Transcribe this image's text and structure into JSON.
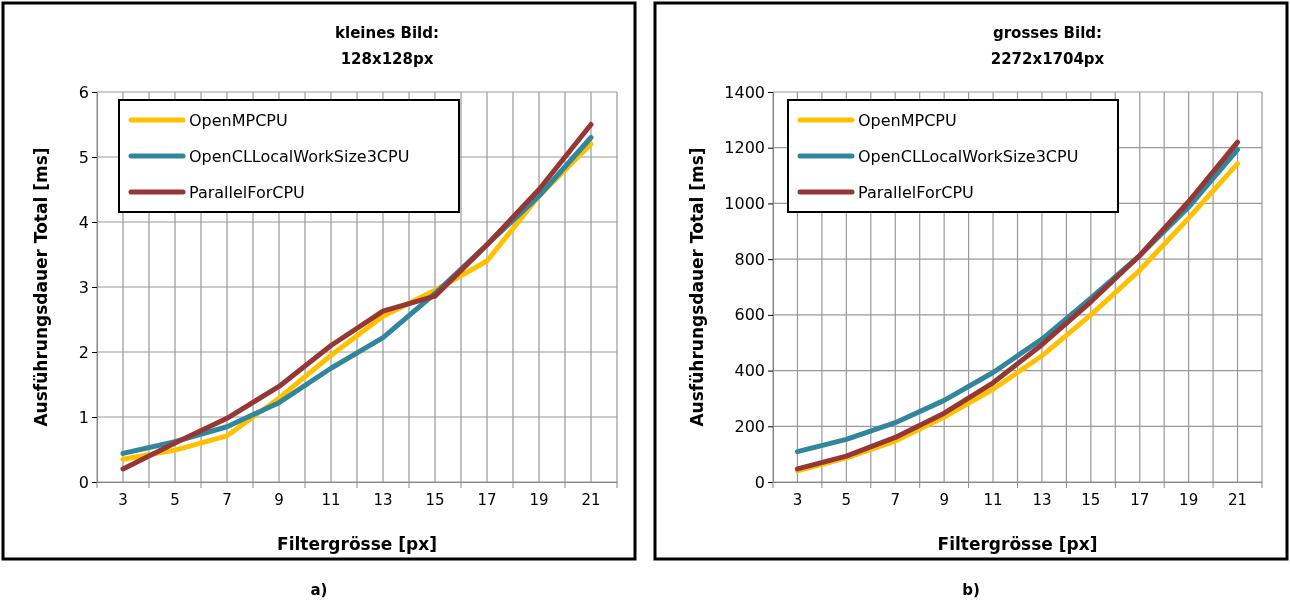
{
  "chart_data": [
    {
      "type": "line",
      "title": "kleines Bild:",
      "subtitle": "128x128px",
      "xlabel": "Filtergrösse [px]",
      "ylabel": "Ausführungsdauer Total [ms]",
      "categories": [
        "3",
        "5",
        "7",
        "9",
        "11",
        "13",
        "15",
        "17",
        "19",
        "21"
      ],
      "series": [
        {
          "name": "OpenMPCPU",
          "color": "#ffc000",
          "values": [
            0.35,
            0.49,
            0.71,
            1.29,
            1.95,
            2.55,
            2.95,
            3.4,
            4.4,
            5.2
          ]
        },
        {
          "name": "OpenCLLocalWorkSize3CPU",
          "color": "#31859c",
          "values": [
            0.44,
            0.62,
            0.85,
            1.22,
            1.75,
            2.22,
            2.9,
            3.65,
            4.4,
            5.3
          ]
        },
        {
          "name": "ParallelForCPU",
          "color": "#953735",
          "values": [
            0.2,
            0.6,
            0.98,
            1.47,
            2.1,
            2.63,
            2.86,
            3.65,
            4.5,
            5.5
          ]
        }
      ],
      "ylim": [
        0,
        6
      ],
      "yticks": [
        0,
        1,
        2,
        3,
        4,
        5,
        6
      ],
      "grid": true,
      "legend": "top left",
      "marker": "none",
      "line_style": "solid",
      "annotations": [
        "a)"
      ]
    },
    {
      "type": "line",
      "title": "grosses Bild:",
      "subtitle": "2272x1704px",
      "xlabel": "Filtergrösse [px]",
      "ylabel": "Ausführungsdauer Total [ms]",
      "categories": [
        "3",
        "5",
        "7",
        "9",
        "11",
        "13",
        "15",
        "17",
        "19",
        "21"
      ],
      "series": [
        {
          "name": "OpenMPCPU",
          "color": "#ffc000",
          "values": [
            40,
            87,
            147,
            233,
            333,
            453,
            600,
            760,
            947,
            1143
          ]
        },
        {
          "name": "OpenCLLocalWorkSize3CPU",
          "color": "#31859c",
          "values": [
            109,
            153,
            213,
            293,
            393,
            513,
            660,
            813,
            987,
            1193
          ]
        },
        {
          "name": "ParallelForCPU",
          "color": "#953735",
          "values": [
            47,
            93,
            160,
            247,
            356,
            493,
            647,
            813,
            1007,
            1220
          ]
        }
      ],
      "ylim": [
        0,
        1400
      ],
      "yticks": [
        0,
        200,
        400,
        600,
        800,
        1000,
        1200,
        1400
      ],
      "grid": true,
      "legend": "top left",
      "marker": "none",
      "line_style": "solid",
      "annotations": [
        "b)"
      ]
    }
  ]
}
